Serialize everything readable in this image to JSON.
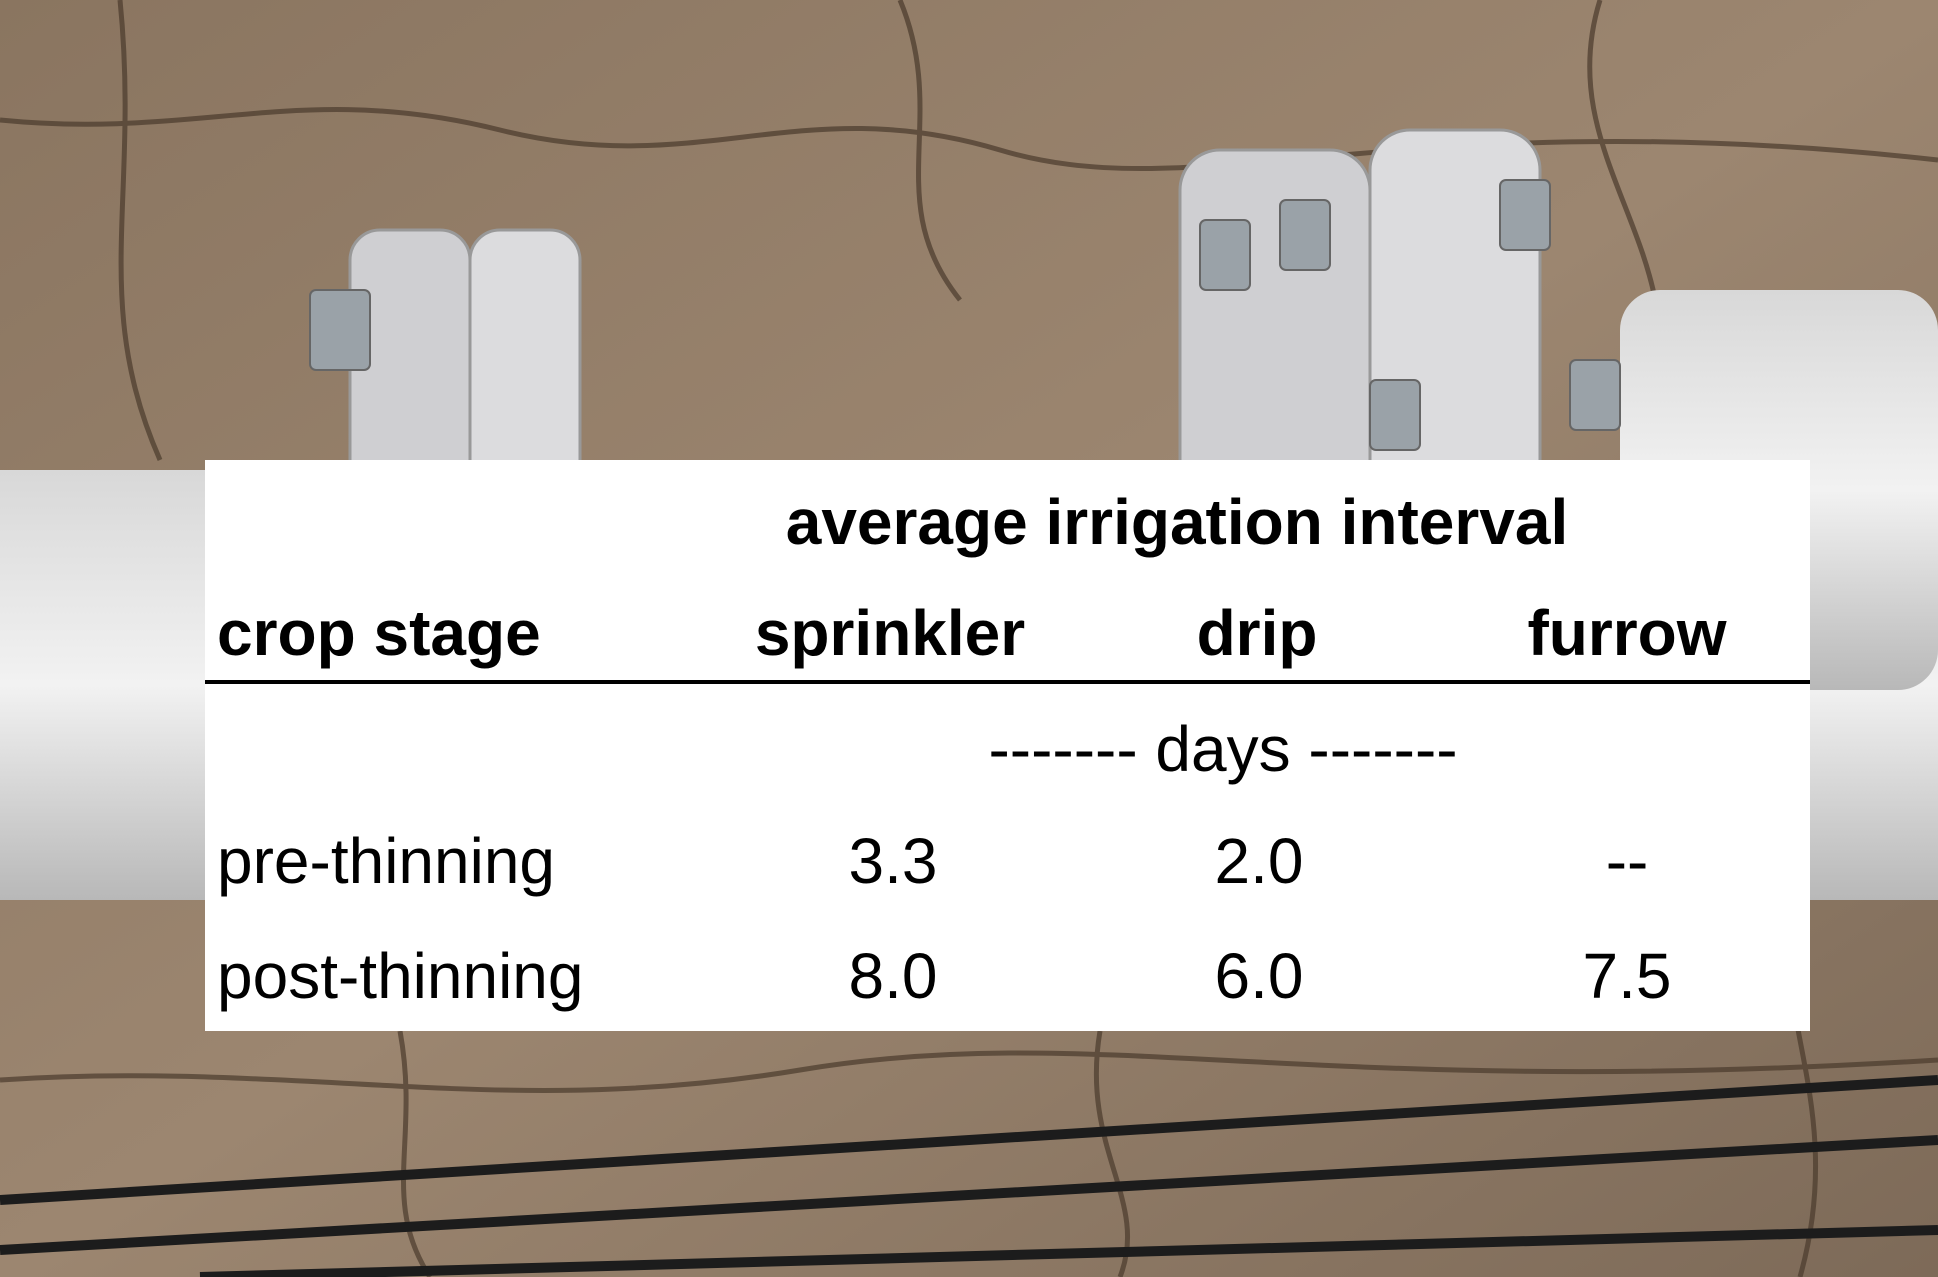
{
  "table": {
    "group_header": "average irrigation interval",
    "columns": [
      "crop stage",
      "sprinkler",
      "drip",
      "furrow"
    ],
    "unit_row": "------- days -------",
    "rows": [
      [
        "pre-thinning",
        "3.3",
        "2.0",
        "--"
      ],
      [
        "post-thinning",
        "8.0",
        "6.0",
        "7.5"
      ]
    ]
  }
}
